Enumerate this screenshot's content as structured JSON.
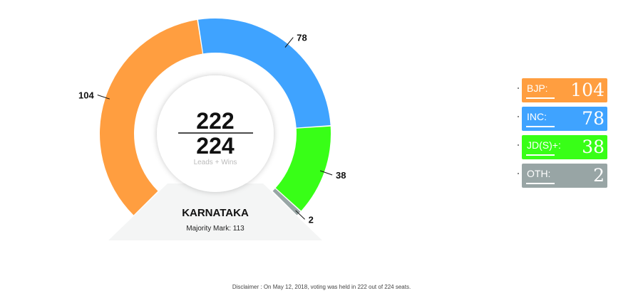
{
  "chart_data": {
    "type": "pie",
    "donut": true,
    "arc_degrees": 270,
    "series": [
      {
        "name": "BJP",
        "value": 104,
        "color": "#FF9E40"
      },
      {
        "name": "INC",
        "value": 78,
        "color": "#3FA3FF"
      },
      {
        "name": "JD(S)+",
        "value": 38,
        "color": "#38FF17"
      },
      {
        "name": "OTH",
        "value": 2,
        "color": "#98A5A5"
      }
    ],
    "center": {
      "numerator": "222",
      "denominator": "224",
      "caption": "Leads + Wins"
    },
    "state": {
      "name": "KARNATAKA",
      "majority": "Majority Mark: 113"
    }
  },
  "legend": [
    {
      "label": "BJP:",
      "value": "104",
      "color": "#FF9E40"
    },
    {
      "label": "INC:",
      "value": "78",
      "color": "#3FA3FF"
    },
    {
      "label": "JD(S)+:",
      "value": "38",
      "color": "#38FF17"
    },
    {
      "label": "OTH:",
      "value": "2",
      "color": "#98A5A5"
    }
  ],
  "disclaimer": "Disclaimer : On May 12, 2018, voting was held in 222 out of 224 seats."
}
